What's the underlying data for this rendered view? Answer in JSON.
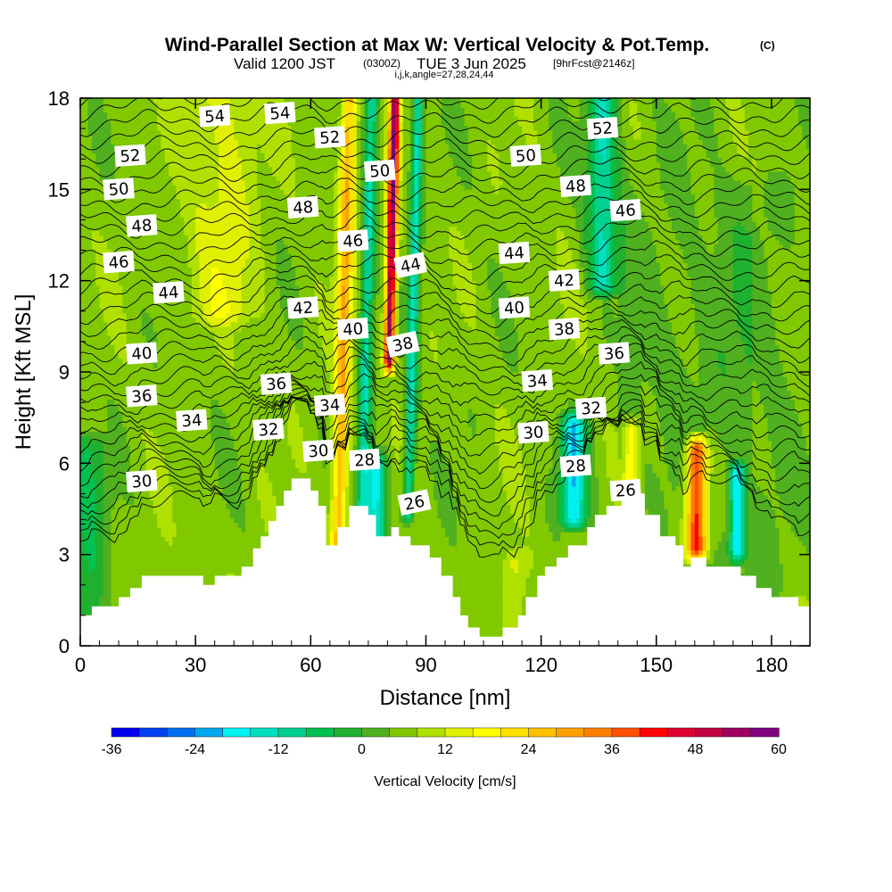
{
  "chart_data": {
    "type": "heatmap",
    "title": "Wind-Parallel Section at Max W: Vertical Velocity & Pot.Temp.",
    "copyright": "(C)",
    "subtitle": {
      "valid": "Valid 1200 JST",
      "utc": "(0300Z)",
      "date": "TUE 3 Jun 2025",
      "forecast": "[9hrFcst@2146z]",
      "indices": "i,j,k,angle=27,28,24,44"
    },
    "xlabel": "Distance [nm]",
    "ylabel": "Height [Kft MSL]",
    "xlim": [
      0,
      190
    ],
    "ylim": [
      0,
      18
    ],
    "xticks": [
      "0",
      "30",
      "60",
      "90",
      "120",
      "150",
      "180"
    ],
    "yticks": [
      "0",
      "3",
      "6",
      "9",
      "12",
      "15",
      "18"
    ],
    "colorbar": {
      "label": "Vertical Velocity [cm/s]",
      "range": [
        -36,
        60
      ],
      "step": 4,
      "tick_labels": [
        "-36",
        "-24",
        "-12",
        "0",
        "12",
        "24",
        "36",
        "48",
        "60"
      ]
    },
    "terrain_kft": [
      [
        0,
        1.0
      ],
      [
        3,
        1.0
      ],
      [
        3,
        1.3
      ],
      [
        10,
        1.3
      ],
      [
        10,
        1.6
      ],
      [
        13,
        1.6
      ],
      [
        13,
        1.9
      ],
      [
        16,
        1.9
      ],
      [
        16,
        2.3
      ],
      [
        32,
        2.3
      ],
      [
        32,
        2.0
      ],
      [
        35,
        2.0
      ],
      [
        35,
        2.3
      ],
      [
        42,
        2.3
      ],
      [
        42,
        2.6
      ],
      [
        45,
        2.6
      ],
      [
        45,
        3.2
      ],
      [
        47,
        3.2
      ],
      [
        47,
        3.6
      ],
      [
        49,
        3.6
      ],
      [
        49,
        4.1
      ],
      [
        51,
        4.1
      ],
      [
        51,
        4.6
      ],
      [
        53,
        4.6
      ],
      [
        53,
        5.1
      ],
      [
        55,
        5.1
      ],
      [
        55,
        5.5
      ],
      [
        60,
        5.5
      ],
      [
        60,
        5.1
      ],
      [
        62,
        5.1
      ],
      [
        62,
        4.6
      ],
      [
        64,
        4.6
      ],
      [
        64,
        3.3
      ],
      [
        67,
        3.3
      ],
      [
        67,
        3.9
      ],
      [
        70,
        3.9
      ],
      [
        70,
        4.6
      ],
      [
        75,
        4.6
      ],
      [
        75,
        4.3
      ],
      [
        77,
        4.3
      ],
      [
        77,
        3.6
      ],
      [
        81,
        3.6
      ],
      [
        81,
        3.9
      ],
      [
        83,
        3.9
      ],
      [
        83,
        3.6
      ],
      [
        86,
        3.6
      ],
      [
        86,
        3.3
      ],
      [
        91,
        3.3
      ],
      [
        91,
        2.9
      ],
      [
        94,
        2.9
      ],
      [
        94,
        2.3
      ],
      [
        97,
        2.3
      ],
      [
        97,
        1.6
      ],
      [
        99,
        1.6
      ],
      [
        99,
        1.0
      ],
      [
        101,
        1.0
      ],
      [
        101,
        0.6
      ],
      [
        104,
        0.6
      ],
      [
        104,
        0.3
      ],
      [
        110,
        0.3
      ],
      [
        110,
        0.6
      ],
      [
        114,
        0.6
      ],
      [
        114,
        1.0
      ],
      [
        116,
        1.0
      ],
      [
        116,
        1.6
      ],
      [
        119,
        1.6
      ],
      [
        119,
        2.3
      ],
      [
        121,
        2.3
      ],
      [
        121,
        2.6
      ],
      [
        124,
        2.6
      ],
      [
        124,
        2.9
      ],
      [
        127,
        2.9
      ],
      [
        127,
        3.3
      ],
      [
        132,
        3.3
      ],
      [
        132,
        3.9
      ],
      [
        134,
        3.9
      ],
      [
        134,
        4.3
      ],
      [
        137,
        4.3
      ],
      [
        137,
        4.6
      ],
      [
        141,
        4.6
      ],
      [
        141,
        5.0
      ],
      [
        147,
        5.0
      ],
      [
        147,
        4.3
      ],
      [
        151,
        4.3
      ],
      [
        151,
        3.6
      ],
      [
        155,
        3.6
      ],
      [
        155,
        3.3
      ],
      [
        157,
        3.3
      ],
      [
        157,
        2.6
      ],
      [
        159,
        2.6
      ],
      [
        159,
        2.9
      ],
      [
        163,
        2.9
      ],
      [
        163,
        2.6
      ],
      [
        172,
        2.6
      ],
      [
        172,
        2.3
      ],
      [
        176,
        2.3
      ],
      [
        176,
        1.9
      ],
      [
        180,
        1.9
      ],
      [
        180,
        1.6
      ],
      [
        187,
        1.6
      ],
      [
        187,
        1.3
      ],
      [
        190,
        1.3
      ]
    ],
    "w_features_cms": [
      {
        "x": 80.5,
        "ztop": 18,
        "zbot": 9.5,
        "sx": 1.3,
        "w": 56,
        "lean": 0.18
      },
      {
        "x": 68.5,
        "ztop": 18,
        "zbot": 3.5,
        "sx": 2.0,
        "w": 28,
        "lean": 0.2
      },
      {
        "x": 74.5,
        "ztop": 18,
        "zbot": 4.5,
        "sx": 1.7,
        "w": -12,
        "lean": 0.2
      },
      {
        "x": 86.5,
        "ztop": 18,
        "zbot": 4.5,
        "sx": 1.4,
        "w": -14,
        "lean": 0.2
      },
      {
        "x": 77,
        "ztop": 6.0,
        "zbot": 3.8,
        "sx": 2.5,
        "w": -18,
        "lean": 0.0
      },
      {
        "x": 37,
        "ztop": 18,
        "zbot": 11,
        "sx": 9,
        "w": 14,
        "lean": 0.0
      },
      {
        "x": 136,
        "ztop": 18,
        "zbot": 12,
        "sx": 4,
        "w": -13,
        "lean": 0.0
      },
      {
        "x": 128.5,
        "ztop": 7.2,
        "zbot": 4.3,
        "sx": 3.2,
        "w": -19,
        "lean": 0.0
      },
      {
        "x": 143.5,
        "ztop": 7.0,
        "zbot": 5.0,
        "sx": 2.0,
        "w": 20,
        "lean": 0.0
      },
      {
        "x": 160.5,
        "ztop": 6.4,
        "zbot": 3.3,
        "sx": 2.6,
        "w": 44,
        "lean": 0.0
      },
      {
        "x": 171,
        "ztop": 5.6,
        "zbot": 3.2,
        "sx": 2.0,
        "w": -18,
        "lean": 0.0
      },
      {
        "x": 113,
        "ztop": 2.7,
        "zbot": 0.6,
        "sx": 3.0,
        "w": 14,
        "lean": 0.0
      },
      {
        "x": 2,
        "ztop": 6.5,
        "zbot": 1.2,
        "sx": 5,
        "w": -4,
        "lean": 0.0
      },
      {
        "x": 178,
        "ztop": 15,
        "zbot": 2,
        "sx": 10,
        "w": 3,
        "lean": 0.0
      }
    ],
    "theta_isentropes_c": [
      {
        "value": 26,
        "z": 4.2,
        "labels": [
          {
            "text": "26",
            "x": 87,
            "z": 4.7
          },
          {
            "text": "26",
            "x": 142,
            "z": 5.1
          }
        ]
      },
      {
        "value": 28,
        "z": 5.0,
        "labels": [
          {
            "text": "28",
            "x": 74,
            "z": 6.1
          },
          {
            "text": "28",
            "x": 129,
            "z": 5.9
          }
        ]
      },
      {
        "value": 30,
        "z": 5.9,
        "labels": [
          {
            "text": "30",
            "x": 16,
            "z": 5.4
          },
          {
            "text": "30",
            "x": 62,
            "z": 6.4
          },
          {
            "text": "30",
            "x": 118,
            "z": 7.0
          }
        ]
      },
      {
        "value": 32,
        "z": 6.8,
        "labels": [
          {
            "text": "32",
            "x": 49,
            "z": 7.1
          },
          {
            "text": "32",
            "x": 133,
            "z": 7.8
          }
        ]
      },
      {
        "value": 34,
        "z": 7.7,
        "labels": [
          {
            "text": "34",
            "x": 29,
            "z": 7.4
          },
          {
            "text": "34",
            "x": 65,
            "z": 7.9
          },
          {
            "text": "34",
            "x": 119,
            "z": 8.7
          }
        ]
      },
      {
        "value": 36,
        "z": 8.6,
        "labels": [
          {
            "text": "36",
            "x": 16,
            "z": 8.2
          },
          {
            "text": "36",
            "x": 51,
            "z": 8.6
          },
          {
            "text": "36",
            "x": 139,
            "z": 9.6
          }
        ]
      },
      {
        "value": 38,
        "z": 9.6,
        "labels": [
          {
            "text": "38",
            "x": 84,
            "z": 9.9
          },
          {
            "text": "38",
            "x": 126,
            "z": 10.4
          }
        ]
      },
      {
        "value": 40,
        "z": 10.4,
        "labels": [
          {
            "text": "40",
            "x": 16,
            "z": 9.6
          },
          {
            "text": "40",
            "x": 71,
            "z": 10.4
          },
          {
            "text": "40",
            "x": 113,
            "z": 11.1
          }
        ]
      },
      {
        "value": 42,
        "z": 11.3,
        "labels": [
          {
            "text": "42",
            "x": 58,
            "z": 11.1
          },
          {
            "text": "42",
            "x": 126,
            "z": 12.0
          }
        ]
      },
      {
        "value": 44,
        "z": 12.2,
        "labels": [
          {
            "text": "44",
            "x": 23,
            "z": 11.6
          },
          {
            "text": "44",
            "x": 86,
            "z": 12.5
          },
          {
            "text": "44",
            "x": 113,
            "z": 12.9
          }
        ]
      },
      {
        "value": 46,
        "z": 13.1,
        "labels": [
          {
            "text": "46",
            "x": 10,
            "z": 12.6
          },
          {
            "text": "46",
            "x": 71,
            "z": 13.3
          },
          {
            "text": "46",
            "x": 142,
            "z": 14.3
          }
        ]
      },
      {
        "value": 48,
        "z": 14.0,
        "labels": [
          {
            "text": "48",
            "x": 16,
            "z": 13.8
          },
          {
            "text": "48",
            "x": 58,
            "z": 14.4
          },
          {
            "text": "48",
            "x": 129,
            "z": 15.1
          }
        ]
      },
      {
        "value": 50,
        "z": 14.9,
        "labels": [
          {
            "text": "50",
            "x": 10,
            "z": 15.0
          },
          {
            "text": "50",
            "x": 78,
            "z": 15.6
          },
          {
            "text": "50",
            "x": 116,
            "z": 16.1
          }
        ]
      },
      {
        "value": 52,
        "z": 15.8,
        "labels": [
          {
            "text": "52",
            "x": 13,
            "z": 16.1
          },
          {
            "text": "52",
            "x": 65,
            "z": 16.7
          },
          {
            "text": "52",
            "x": 136,
            "z": 17.0
          }
        ]
      },
      {
        "value": 54,
        "z": 16.8,
        "labels": [
          {
            "text": "54",
            "x": 35,
            "z": 17.4
          },
          {
            "text": "54",
            "x": 52,
            "z": 17.5
          }
        ]
      }
    ]
  }
}
